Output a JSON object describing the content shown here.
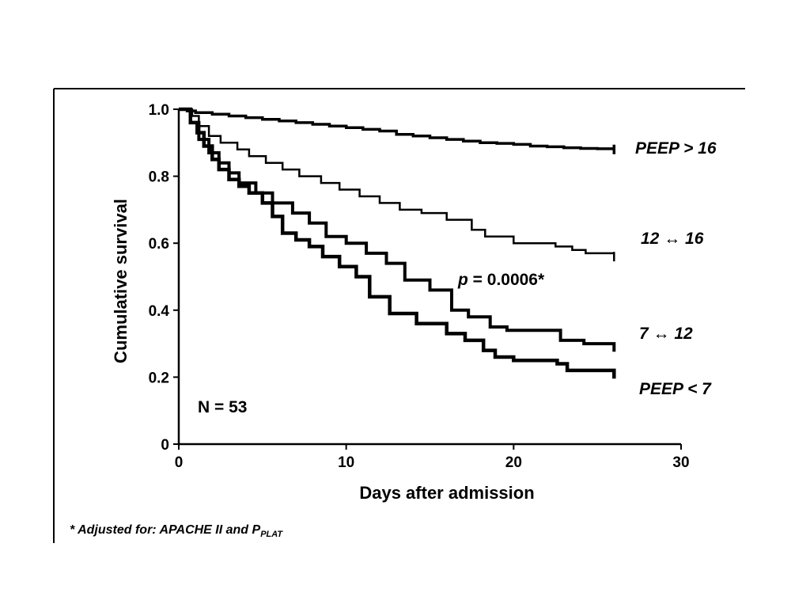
{
  "chart_data": {
    "type": "line",
    "xlabel": "Days after admission",
    "ylabel": "Cumulative survival",
    "xlim": [
      0,
      30
    ],
    "ylim": [
      0,
      1.0
    ],
    "x_ticks": [
      "0",
      "10",
      "20",
      "30"
    ],
    "y_ticks": [
      "0",
      "0.2",
      "0.4",
      "0.6",
      "0.8",
      "1.0"
    ],
    "x_tick_values": [
      0,
      10,
      20,
      30
    ],
    "y_tick_values": [
      0,
      0.2,
      0.4,
      0.6,
      0.8,
      1.0
    ],
    "grid": false,
    "step": true,
    "series": [
      {
        "name": "PEEP > 16",
        "width": 3.5,
        "x": [
          0,
          0.5,
          1,
          2,
          3,
          4,
          5,
          6,
          7,
          8,
          9,
          10,
          11,
          12,
          13,
          14,
          15,
          16,
          17,
          18,
          19,
          20,
          21,
          22,
          23,
          24,
          25,
          26
        ],
        "y": [
          1.0,
          0.995,
          0.99,
          0.985,
          0.98,
          0.975,
          0.97,
          0.965,
          0.96,
          0.955,
          0.95,
          0.945,
          0.94,
          0.935,
          0.925,
          0.92,
          0.915,
          0.91,
          0.905,
          0.9,
          0.898,
          0.895,
          0.89,
          0.888,
          0.885,
          0.883,
          0.882,
          0.88
        ]
      },
      {
        "name": "12 ↔ 16",
        "width": 2.5,
        "x": [
          0,
          0.8,
          1.2,
          1.8,
          2.5,
          3.5,
          4.2,
          5.2,
          6.2,
          7.2,
          8.5,
          9.6,
          10.8,
          12,
          13.2,
          14.5,
          16,
          17.5,
          18.3,
          20,
          21,
          22.5,
          23.5,
          24.3,
          26
        ],
        "y": [
          1.0,
          0.98,
          0.95,
          0.92,
          0.9,
          0.88,
          0.86,
          0.84,
          0.82,
          0.8,
          0.78,
          0.76,
          0.74,
          0.72,
          0.7,
          0.69,
          0.67,
          0.64,
          0.62,
          0.6,
          0.6,
          0.59,
          0.58,
          0.57,
          0.56
        ]
      },
      {
        "name": "7 ↔ 12",
        "width": 4,
        "x": [
          0,
          0.7,
          1.2,
          1.8,
          2.4,
          3.0,
          3.6,
          4.6,
          5.6,
          6.8,
          7.8,
          8.8,
          10.0,
          11.2,
          12.4,
          13.5,
          15.0,
          16.3,
          17.3,
          18.6,
          19.6,
          21.2,
          22.8,
          24.2,
          26
        ],
        "y": [
          1.0,
          0.96,
          0.91,
          0.87,
          0.84,
          0.81,
          0.78,
          0.75,
          0.72,
          0.69,
          0.66,
          0.62,
          0.6,
          0.57,
          0.54,
          0.49,
          0.46,
          0.4,
          0.38,
          0.35,
          0.34,
          0.34,
          0.31,
          0.3,
          0.29
        ]
      },
      {
        "name": "PEEP < 7",
        "width": 4.5,
        "x": [
          0,
          0.7,
          1.1,
          1.5,
          2.0,
          2.4,
          3.0,
          3.6,
          4.2,
          5.0,
          5.6,
          6.2,
          7.0,
          7.8,
          8.6,
          9.6,
          10.6,
          11.4,
          12.6,
          14.2,
          15.4,
          16.0,
          17.1,
          18.2,
          18.9,
          20.0,
          22.0,
          22.6,
          23.2,
          26
        ],
        "y": [
          1.0,
          0.96,
          0.93,
          0.89,
          0.85,
          0.82,
          0.79,
          0.77,
          0.75,
          0.72,
          0.68,
          0.63,
          0.61,
          0.59,
          0.56,
          0.53,
          0.5,
          0.44,
          0.39,
          0.36,
          0.36,
          0.33,
          0.31,
          0.28,
          0.26,
          0.25,
          0.25,
          0.24,
          0.22,
          0.21
        ]
      }
    ],
    "series_labels": [
      "PEEP > 16",
      "12 ↔ 16",
      "7 ↔ 12",
      "PEEP < 7"
    ],
    "annotations": {
      "p_prefix": "p",
      "p_value": " = 0.0006*",
      "n": "N = 53"
    },
    "footnote": {
      "main": "* Adjusted for: APACHE II and P",
      "subscript": "PLAT"
    }
  }
}
